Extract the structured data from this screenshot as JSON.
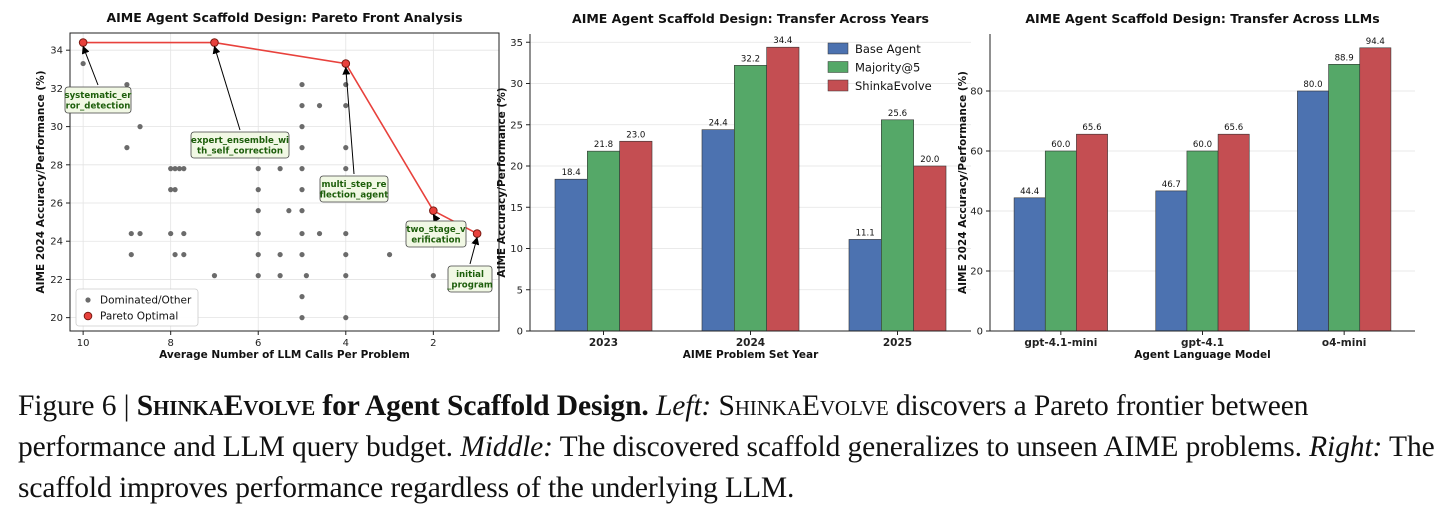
{
  "colors": {
    "base": "#4c72b0",
    "majority": "#55a868",
    "shinka": "#c44e52",
    "pareto_line": "#e8413c",
    "dominated": "#6b6b6b",
    "annotation_text": "#1d5e0b",
    "annotation_fill": "#f1f8e4"
  },
  "chart_data": [
    {
      "type": "scatter",
      "title": "AIME Agent Scaffold Design: Pareto Front Analysis",
      "xlabel": "Average Number of LLM Calls Per Problem",
      "ylabel": "AIME 2024 Accuracy/Performance (%)",
      "xlim": [
        10.3,
        0.5
      ],
      "ylim": [
        19.3,
        34.9
      ],
      "xticks": [
        "10",
        "8",
        "6",
        "4",
        "2"
      ],
      "yticks": [
        "20",
        "22",
        "24",
        "26",
        "28",
        "30",
        "32",
        "34"
      ],
      "grid": true,
      "legend": {
        "position": "lower-left",
        "entries": [
          "Dominated/Other",
          "Pareto Optimal"
        ]
      },
      "dominated": [
        {
          "x": 10.0,
          "y": 33.3
        },
        {
          "x": 9.0,
          "y": 32.2
        },
        {
          "x": 9.0,
          "y": 28.9
        },
        {
          "x": 8.7,
          "y": 30.0
        },
        {
          "x": 8.9,
          "y": 24.4
        },
        {
          "x": 8.9,
          "y": 23.3
        },
        {
          "x": 8.7,
          "y": 24.4
        },
        {
          "x": 8.0,
          "y": 27.8
        },
        {
          "x": 7.9,
          "y": 27.8
        },
        {
          "x": 7.8,
          "y": 27.8
        },
        {
          "x": 7.7,
          "y": 27.8
        },
        {
          "x": 8.0,
          "y": 26.7
        },
        {
          "x": 7.9,
          "y": 26.7
        },
        {
          "x": 8.0,
          "y": 24.4
        },
        {
          "x": 7.9,
          "y": 23.3
        },
        {
          "x": 7.7,
          "y": 23.3
        },
        {
          "x": 7.7,
          "y": 24.4
        },
        {
          "x": 7.0,
          "y": 22.2
        },
        {
          "x": 6.0,
          "y": 27.8
        },
        {
          "x": 6.0,
          "y": 26.7
        },
        {
          "x": 6.0,
          "y": 25.6
        },
        {
          "x": 6.0,
          "y": 24.4
        },
        {
          "x": 6.0,
          "y": 23.3
        },
        {
          "x": 6.0,
          "y": 22.2
        },
        {
          "x": 6.0,
          "y": 28.9
        },
        {
          "x": 5.5,
          "y": 27.8
        },
        {
          "x": 5.5,
          "y": 23.3
        },
        {
          "x": 5.5,
          "y": 22.2
        },
        {
          "x": 5.3,
          "y": 25.6
        },
        {
          "x": 5.0,
          "y": 32.2
        },
        {
          "x": 5.0,
          "y": 31.1
        },
        {
          "x": 5.0,
          "y": 30.0
        },
        {
          "x": 5.0,
          "y": 28.9
        },
        {
          "x": 5.0,
          "y": 27.8
        },
        {
          "x": 5.0,
          "y": 26.7
        },
        {
          "x": 5.0,
          "y": 25.6
        },
        {
          "x": 5.0,
          "y": 24.4
        },
        {
          "x": 5.0,
          "y": 23.3
        },
        {
          "x": 5.0,
          "y": 21.1
        },
        {
          "x": 5.0,
          "y": 20.0
        },
        {
          "x": 4.9,
          "y": 22.2
        },
        {
          "x": 4.6,
          "y": 31.1
        },
        {
          "x": 4.6,
          "y": 24.4
        },
        {
          "x": 4.0,
          "y": 32.2
        },
        {
          "x": 4.0,
          "y": 31.1
        },
        {
          "x": 4.0,
          "y": 28.9
        },
        {
          "x": 4.0,
          "y": 27.8
        },
        {
          "x": 4.0,
          "y": 24.4
        },
        {
          "x": 4.0,
          "y": 23.3
        },
        {
          "x": 4.0,
          "y": 22.2
        },
        {
          "x": 4.0,
          "y": 20.0
        },
        {
          "x": 3.0,
          "y": 23.3
        },
        {
          "x": 2.0,
          "y": 22.2
        }
      ],
      "pareto": [
        {
          "x": 10.0,
          "y": 34.4
        },
        {
          "x": 7.0,
          "y": 34.4
        },
        {
          "x": 4.0,
          "y": 33.3
        },
        {
          "x": 2.0,
          "y": 25.6
        },
        {
          "x": 1.0,
          "y": 24.4
        }
      ],
      "annotations": [
        {
          "lines": [
            "systematic_er",
            "ror_detection"
          ],
          "point": 0
        },
        {
          "lines": [
            "expert_ensemble_wi",
            "th_self_correction"
          ],
          "point": 1
        },
        {
          "lines": [
            "multi_step_re",
            "flection_agent"
          ],
          "point": 2
        },
        {
          "lines": [
            "two_stage_v",
            "erification"
          ],
          "point": 3
        },
        {
          "lines": [
            "initial",
            "_program"
          ],
          "point": 4
        }
      ]
    },
    {
      "type": "bar",
      "title": "AIME Agent Scaffold Design: Transfer Across Years",
      "xlabel": "AIME Problem Set Year",
      "ylabel": "AIME Accuracy/Performance (%)",
      "categories": [
        "2023",
        "2024",
        "2025"
      ],
      "ylim": [
        0,
        36
      ],
      "yticks": [
        "0",
        "5",
        "10",
        "15",
        "20",
        "25",
        "30",
        "35"
      ],
      "grid": true,
      "legend": {
        "position": "top-right"
      },
      "series": [
        {
          "name": "Base Agent",
          "values": [
            18.4,
            24.4,
            11.1
          ],
          "labels": [
            "18.4",
            "24.4",
            "11.1"
          ]
        },
        {
          "name": "Majority@5",
          "values": [
            21.8,
            32.2,
            25.6
          ],
          "labels": [
            "21.8",
            "32.2",
            "25.6"
          ]
        },
        {
          "name": "ShinkaEvolve",
          "values": [
            23.0,
            34.4,
            20.0
          ],
          "labels": [
            "23.0",
            "34.4",
            "20.0"
          ]
        }
      ]
    },
    {
      "type": "bar",
      "title": "AIME Agent Scaffold Design: Transfer Across LLMs",
      "xlabel": "Agent Language Model",
      "ylabel": "AIME 2024 Accuracy/Performance (%)",
      "categories": [
        "gpt-4.1-mini",
        "gpt-4.1",
        "o4-mini"
      ],
      "ylim": [
        0,
        99
      ],
      "yticks": [
        "0",
        "20",
        "40",
        "60",
        "80"
      ],
      "grid": true,
      "series": [
        {
          "name": "Base Agent",
          "values": [
            44.4,
            46.7,
            80.0
          ],
          "labels": [
            "44.4",
            "46.7",
            "80.0"
          ]
        },
        {
          "name": "Majority@5",
          "values": [
            60.0,
            60.0,
            88.9
          ],
          "labels": [
            "60.0",
            "60.0",
            "88.9"
          ]
        },
        {
          "name": "ShinkaEvolve",
          "values": [
            65.6,
            65.6,
            94.4
          ],
          "labels": [
            "65.6",
            "65.6",
            "94.4"
          ]
        }
      ]
    }
  ],
  "caption": {
    "label": "Figure 6 |",
    "bold_sc": "ShinkaEvolve",
    "bold_rest": "for Agent Scaffold Design.",
    "left_label": "Left:",
    "left_sc": "ShinkaEvolve",
    "left_text": "discovers a Pareto frontier between performance and LLM query budget.",
    "middle_label": "Middle:",
    "middle_text": "The discovered scaffold generalizes to unseen AIME problems.",
    "right_label": "Right:",
    "right_text": "The scaffold improves performance regardless of the underlying LLM."
  }
}
